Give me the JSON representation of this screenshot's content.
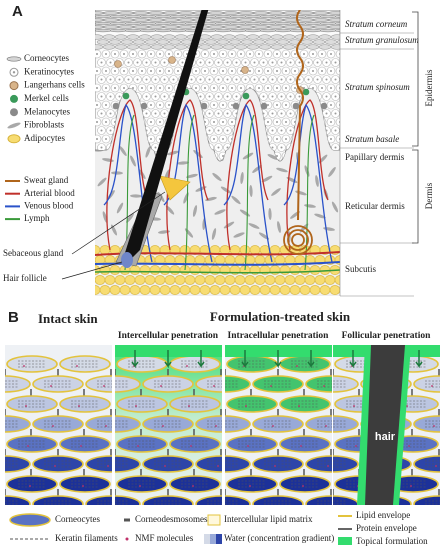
{
  "panel_a": {
    "label": "A",
    "cells": [
      "Corneocytes",
      "Keratinocytes",
      "Langerhans cells",
      "Merkel cells",
      "Melanocytes",
      "Fibroblasts",
      "Adipocytes"
    ],
    "vessels": [
      "Sweat gland",
      "Arterial blood",
      "Venous blood",
      "Lymph"
    ],
    "structures": [
      "Sebaceous gland",
      "Hair follicle"
    ],
    "layers": [
      "Stratum corneum",
      "Stratum granulosum",
      "Stratum spinosum",
      "Stratum basale",
      "Papillary dermis",
      "Reticular dermis",
      "Subcutis"
    ],
    "regions": [
      "Epidermis",
      "Dermis"
    ]
  },
  "panel_b": {
    "label": "B",
    "intact_title": "Intact skin",
    "treated_title": "Formulation-treated skin",
    "routes": [
      "Intercellular penetration",
      "Intracellular penetration",
      "Follicular penetration"
    ],
    "hair": "hair",
    "legend": [
      "Corneocytes",
      "Corneodesmosomes",
      "Intercellular lipid matrix",
      "Lipid envelope",
      "Keratin filaments",
      "NMF molecules",
      "Water (concentration gradient)",
      "Protein envelope",
      "Topical formulation"
    ]
  }
}
